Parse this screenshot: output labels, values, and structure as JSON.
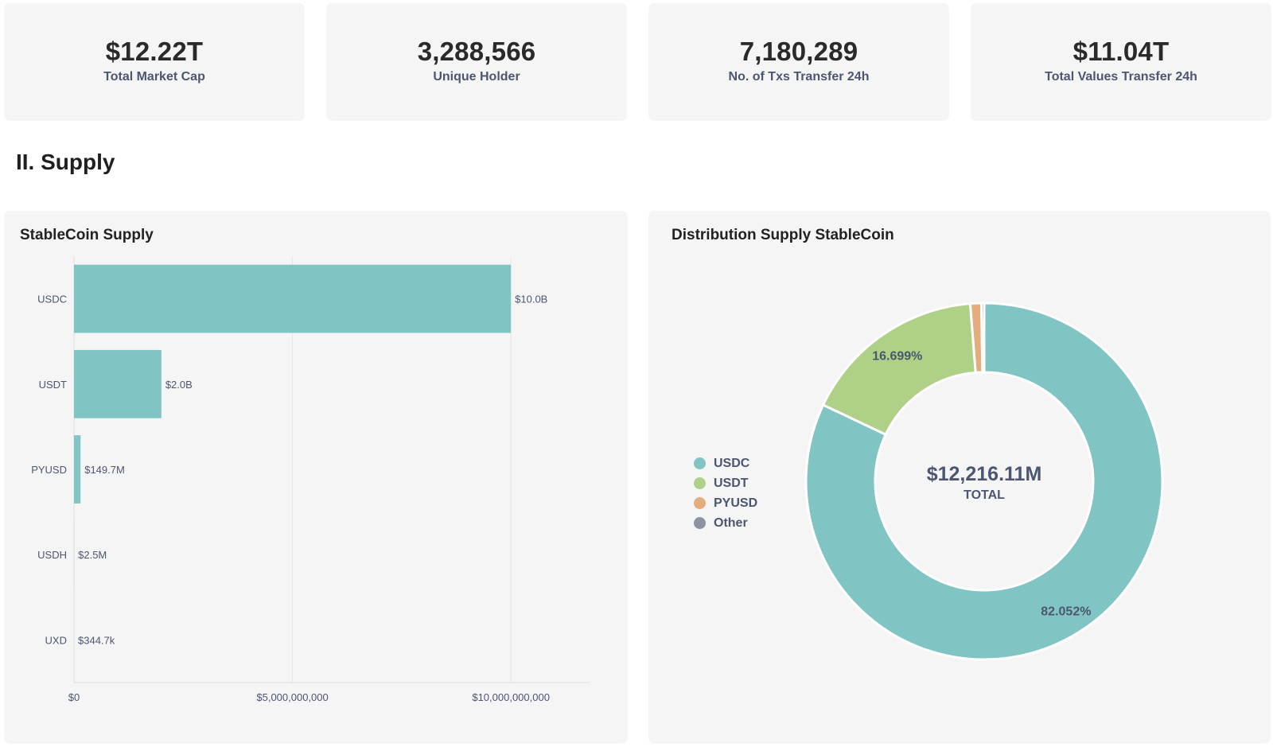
{
  "stats": [
    {
      "value": "$12.22T",
      "label": "Total Market Cap"
    },
    {
      "value": "3,288,566",
      "label": "Unique Holder"
    },
    {
      "value": "7,180,289",
      "label": "No. of Txs Transfer 24h"
    },
    {
      "value": "$11.04T",
      "label": "Total Values Transfer 24h"
    }
  ],
  "section_title": "II. Supply",
  "supply_chart": {
    "title": "StableCoin Supply"
  },
  "distribution_chart": {
    "title": "Distribution Supply StableCoin",
    "center_value": "$12,216.11M",
    "center_label": "TOTAL"
  },
  "colors": {
    "USDC": "#80c5c4",
    "USDT": "#afd087",
    "PYUSD": "#e5ac7c",
    "Other": "#8d93a1",
    "grid": "#e6e6e6",
    "axis_text": "#4b5670"
  },
  "chart_data": [
    {
      "type": "bar",
      "orientation": "horizontal",
      "title": "StableCoin Supply",
      "categories": [
        "USDC",
        "USDT",
        "PYUSD",
        "USDH",
        "UXD"
      ],
      "values": [
        10000000000,
        2000000000,
        149700000,
        2500000,
        344700
      ],
      "data_labels": [
        "$10.0B",
        "$2.0B",
        "$149.7M",
        "$2.5M",
        "$344.7k"
      ],
      "xlim": [
        0,
        11800000000
      ],
      "x_ticks": [
        0,
        5000000000,
        10000000000
      ],
      "x_tick_labels": [
        "$0",
        "$5,000,000,000",
        "$10,000,000,000"
      ],
      "grid": true,
      "legend": "none"
    },
    {
      "type": "pie",
      "variant": "donut",
      "title": "Distribution Supply StableCoin",
      "labels": [
        "USDC",
        "USDT",
        "PYUSD",
        "Other"
      ],
      "values": [
        82.052,
        16.699,
        1.0,
        0.249
      ],
      "unit": "%",
      "data_labels": [
        "82.052%",
        "16.699%",
        "",
        ""
      ],
      "legend": "left"
    }
  ]
}
